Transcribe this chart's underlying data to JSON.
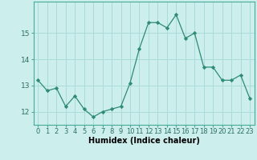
{
  "x": [
    0,
    1,
    2,
    3,
    4,
    5,
    6,
    7,
    8,
    9,
    10,
    11,
    12,
    13,
    14,
    15,
    16,
    17,
    18,
    19,
    20,
    21,
    22,
    23
  ],
  "y": [
    13.2,
    12.8,
    12.9,
    12.2,
    12.6,
    12.1,
    11.8,
    12.0,
    12.1,
    12.2,
    13.1,
    14.4,
    15.4,
    15.4,
    15.2,
    15.7,
    14.8,
    15.0,
    13.7,
    13.7,
    13.2,
    13.2,
    13.4,
    12.5
  ],
  "line_color": "#2e8b74",
  "marker": "D",
  "marker_size": 2.2,
  "bg_color": "#cceeed",
  "grid_color": "#aadada",
  "xlabel": "Humidex (Indice chaleur)",
  "xlim": [
    -0.5,
    23.5
  ],
  "ylim": [
    11.5,
    16.2
  ],
  "yticks": [
    12,
    13,
    14,
    15
  ],
  "xticks": [
    0,
    1,
    2,
    3,
    4,
    5,
    6,
    7,
    8,
    9,
    10,
    11,
    12,
    13,
    14,
    15,
    16,
    17,
    18,
    19,
    20,
    21,
    22,
    23
  ],
  "tick_fontsize": 6.0,
  "xlabel_fontsize": 7.0
}
